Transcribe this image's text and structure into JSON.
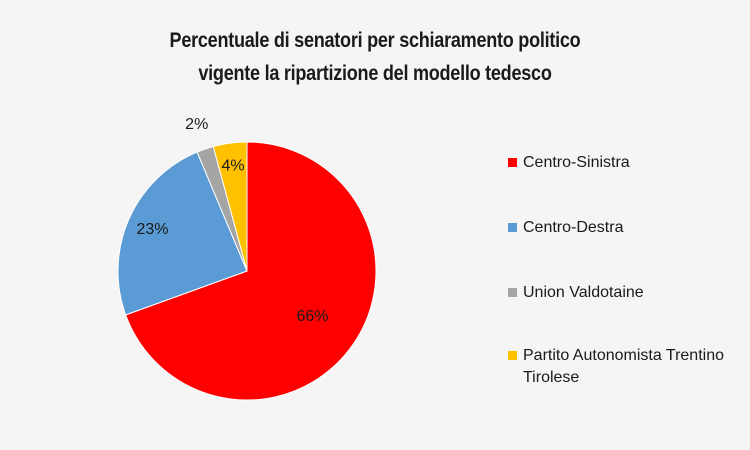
{
  "chart_data": {
    "type": "pie",
    "title_lines": [
      "Percentuale di senatori per schiaramento politico",
      "vigente la ripartizione del modello tedesco"
    ],
    "categories": [
      "Centro-Sinistra",
      "Centro-Destra",
      "Union Valdotaine",
      "Partito Autonomista Trentino Tirolese"
    ],
    "values": [
      66,
      23,
      2,
      4
    ],
    "data_labels": [
      "66%",
      "23%",
      "2%",
      "4%"
    ],
    "colors": [
      "#ff0000",
      "#5b9bd5",
      "#a5a5a5",
      "#ffc000"
    ],
    "start_angle_deg": 0,
    "direction": "clockwise",
    "legend_position": "right"
  }
}
